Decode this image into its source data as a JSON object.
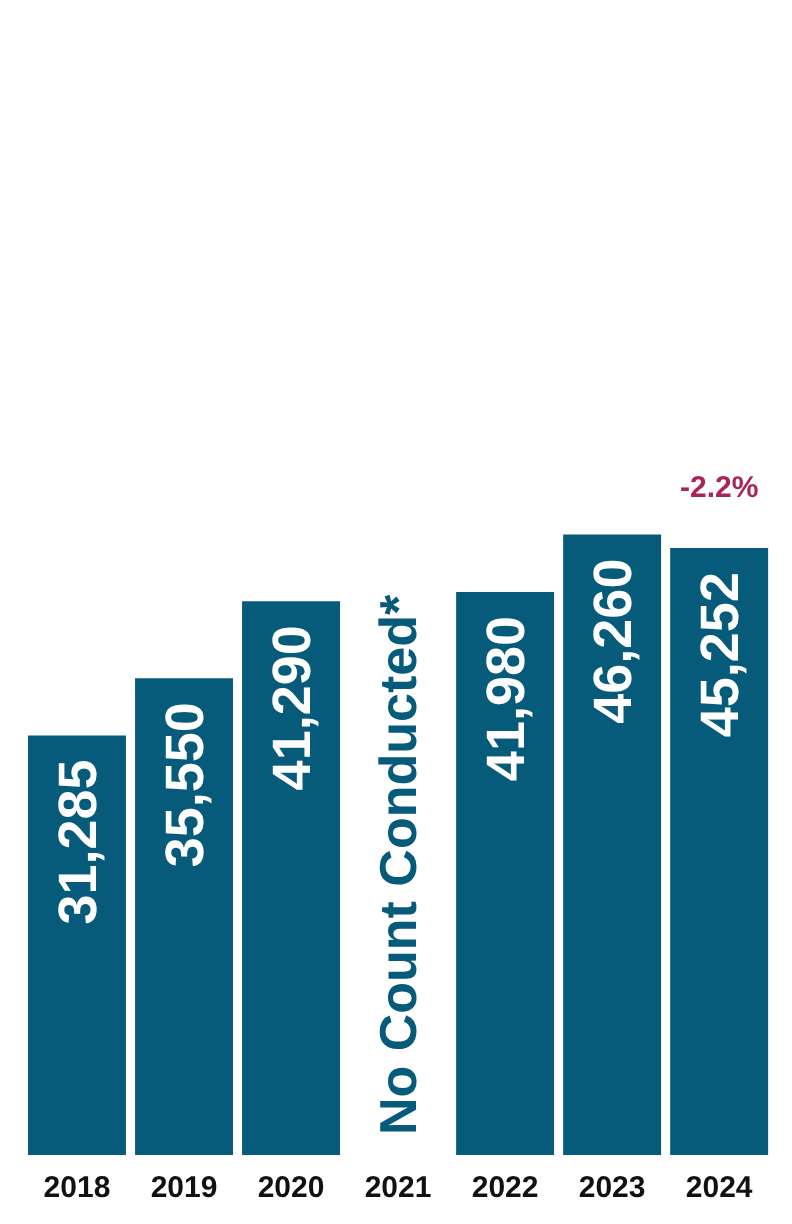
{
  "chart_data": {
    "type": "bar",
    "categories": [
      "2018",
      "2019",
      "2020",
      "2021",
      "2022",
      "2023",
      "2024"
    ],
    "values": [
      31285,
      35550,
      41290,
      null,
      41980,
      46260,
      45252
    ],
    "color": "#065a7a",
    "value_labels": [
      "31,285",
      "35,550",
      "41,290",
      null,
      "41,980",
      "46,260",
      "45,252"
    ],
    "annotations": [
      "No Count Conducted*",
      "-2.2%"
    ]
  }
}
